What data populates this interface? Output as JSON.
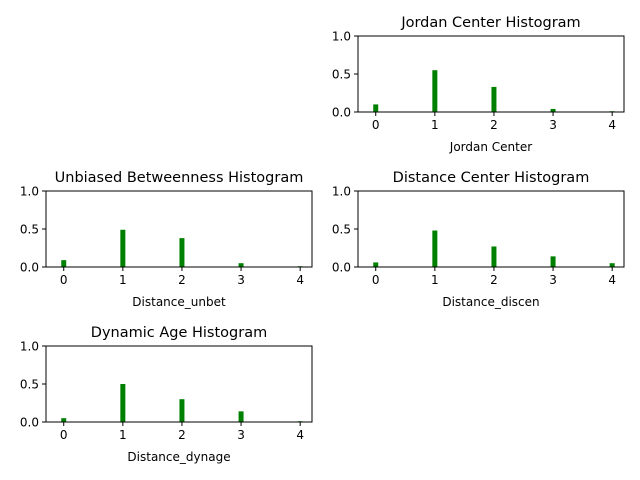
{
  "chart_data": [
    {
      "type": "bar",
      "title": "Jordan Center Histogram",
      "xlabel": "Jordan Center",
      "ylabel": "",
      "categories": [
        0,
        1,
        2,
        3,
        4
      ],
      "values": [
        0.1,
        0.55,
        0.33,
        0.04,
        0.01
      ],
      "xticks": [
        "0",
        "1",
        "2",
        "3",
        "4"
      ],
      "yticks": [
        "0.0",
        "0.5",
        "1.0"
      ],
      "xlim": [
        -0.3,
        4.2
      ],
      "ylim": [
        0,
        1.0
      ],
      "color": "#008000"
    },
    {
      "type": "bar",
      "title": "Unbiased Betweenness Histogram",
      "xlabel": "Distance_unbet",
      "ylabel": "",
      "categories": [
        0,
        1,
        2,
        3,
        4
      ],
      "values": [
        0.09,
        0.49,
        0.38,
        0.05,
        0.01
      ],
      "xticks": [
        "0",
        "1",
        "2",
        "3",
        "4"
      ],
      "yticks": [
        "0.0",
        "0.5",
        "1.0"
      ],
      "xlim": [
        -0.3,
        4.2
      ],
      "ylim": [
        0,
        1.0
      ],
      "color": "#008000"
    },
    {
      "type": "bar",
      "title": "Distance Center Histogram",
      "xlabel": "Distance_discen",
      "ylabel": "",
      "categories": [
        0,
        1,
        2,
        3,
        4
      ],
      "values": [
        0.06,
        0.48,
        0.27,
        0.14,
        0.05
      ],
      "xticks": [
        "0",
        "1",
        "2",
        "3",
        "4"
      ],
      "yticks": [
        "0.0",
        "0.5",
        "1.0"
      ],
      "xlim": [
        -0.3,
        4.2
      ],
      "ylim": [
        0,
        1.0
      ],
      "color": "#008000"
    },
    {
      "type": "bar",
      "title": "Dynamic Age Histogram",
      "xlabel": "Distance_dynage",
      "ylabel": "",
      "categories": [
        0,
        1,
        2,
        3,
        4
      ],
      "values": [
        0.05,
        0.5,
        0.3,
        0.14,
        0.01
      ],
      "xticks": [
        "0",
        "1",
        "2",
        "3",
        "4"
      ],
      "yticks": [
        "0.0",
        "0.5",
        "1.0"
      ],
      "xlim": [
        -0.3,
        4.2
      ],
      "ylim": [
        0,
        1.0
      ],
      "color": "#008000"
    }
  ]
}
